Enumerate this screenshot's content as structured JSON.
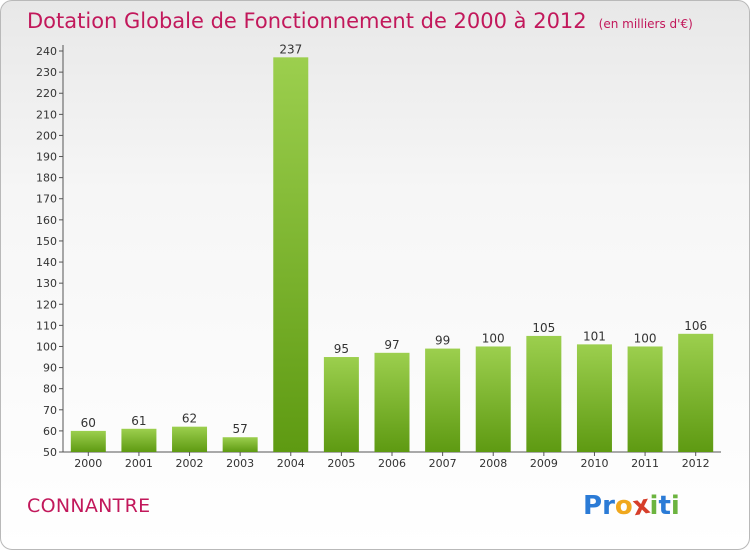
{
  "header": {
    "title": "Dotation Globale de Fonctionnement de 2000 à 2012",
    "unit": "(en milliers d'€)"
  },
  "footer": {
    "commune": "CONNANTRE",
    "logo_letters": [
      "P",
      "r",
      "o",
      "x",
      "i",
      "t",
      "i"
    ]
  },
  "colors": {
    "title": "#c2185b",
    "bar_top": "#9ccf4e",
    "bar_bottom": "#5e9a12",
    "logo": [
      "#2b7bd6",
      "#2b7bd6",
      "#f0a81e",
      "#d63e2a",
      "#6cb43f",
      "#2b7bd6",
      "#6cb43f"
    ]
  },
  "chart_data": {
    "type": "bar",
    "title": "Dotation Globale de Fonctionnement de 2000 à 2012",
    "unit": "(en milliers d'€)",
    "categories": [
      "2000",
      "2001",
      "2002",
      "2003",
      "2004",
      "2005",
      "2006",
      "2007",
      "2008",
      "2009",
      "2010",
      "2011",
      "2012"
    ],
    "values": [
      60,
      61,
      62,
      57,
      237,
      95,
      97,
      99,
      100,
      105,
      101,
      100,
      106
    ],
    "ylim": [
      50,
      240
    ],
    "ytick_step": 10,
    "grid": false,
    "legend": "none"
  }
}
